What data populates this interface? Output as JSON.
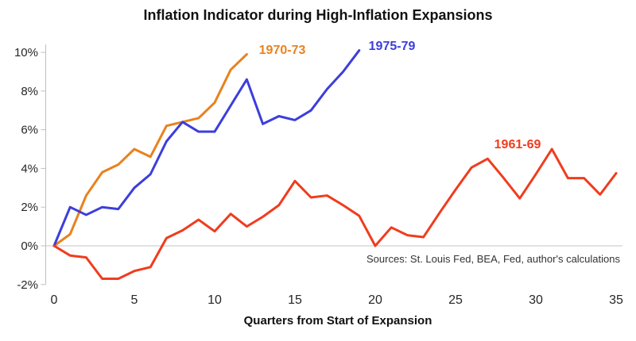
{
  "chart": {
    "title": "Inflation Indicator during High-Inflation Expansions",
    "x_axis_title": "Quarters from Start of Expansion",
    "source_note": "Sources: St. Louis Fed, BEA, Fed, author's calculations"
  },
  "chart_data": {
    "type": "line",
    "title": "Inflation Indicator during High-Inflation Expansions",
    "xlabel": "Quarters from Start of Expansion",
    "ylabel": "",
    "xlim": [
      0,
      35
    ],
    "ylim": [
      -2,
      10
    ],
    "grid": "zero-line-only",
    "legend": "inline-colored-labels",
    "x_ticks": [
      "0",
      "5",
      "10",
      "15",
      "20",
      "25",
      "30",
      "35"
    ],
    "x_tick_values": [
      0,
      5,
      10,
      15,
      20,
      25,
      30,
      35
    ],
    "y_ticks": [
      {
        "label": "10%",
        "value": 10
      },
      {
        "label": "8%",
        "value": 8
      },
      {
        "label": "6%",
        "value": 6
      },
      {
        "label": "4%",
        "value": 4
      },
      {
        "label": "2%",
        "value": 2
      },
      {
        "label": "0%",
        "value": 0
      },
      {
        "label": "-2%",
        "value": -2
      }
    ],
    "series": [
      {
        "name": "1970-73",
        "color": "#E8821E",
        "x_start": 0,
        "values": [
          0,
          0.6,
          2.6,
          3.8,
          4.2,
          5.0,
          4.6,
          6.2,
          6.4,
          6.6,
          7.4,
          9.1,
          9.9
        ]
      },
      {
        "name": "1975-79",
        "color": "#3C3EDB",
        "x_start": 0,
        "values": [
          0,
          2.0,
          1.6,
          2.0,
          1.9,
          3.0,
          3.7,
          5.4,
          6.4,
          5.9,
          5.9,
          7.25,
          8.6,
          6.3,
          6.7,
          6.5,
          7.0,
          8.1,
          9.0,
          10.1
        ]
      },
      {
        "name": "1961-69",
        "color": "#F03C1E",
        "x_start": 0,
        "values": [
          0,
          -0.5,
          -0.6,
          -1.7,
          -1.7,
          -1.3,
          -1.1,
          0.4,
          0.8,
          1.35,
          0.75,
          1.65,
          1.0,
          1.5,
          2.1,
          3.35,
          2.5,
          2.6,
          2.1,
          1.55,
          0.0,
          0.95,
          0.55,
          0.45,
          1.7,
          2.9,
          4.05,
          4.5,
          3.5,
          2.45,
          3.7,
          5.0,
          3.5,
          3.5,
          2.65,
          3.75
        ]
      }
    ]
  }
}
